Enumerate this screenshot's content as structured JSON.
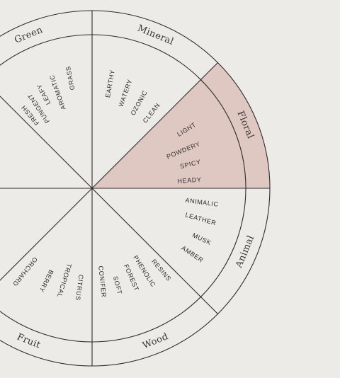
{
  "wheel": {
    "colors": {
      "background": "#ecebe7",
      "line": "#2f2b2b",
      "highlight": "#dfc8c1",
      "text": "#2e2a2a"
    },
    "highlighted_segment": "Floral",
    "segments": [
      {
        "name": "Green",
        "notes": [
          "FRESH",
          "PUNGENT",
          "LEAFY",
          "AROMATIC",
          "GRASS"
        ]
      },
      {
        "name": "Mineral",
        "notes": [
          "EARTHY",
          "WATERY",
          "OZONIC",
          "CLEAN"
        ]
      },
      {
        "name": "Floral",
        "notes": [
          "LIGHT",
          "POWDERY",
          "SPICY",
          "HEADY"
        ]
      },
      {
        "name": "Animal",
        "notes": [
          "ANIMALIC",
          "LEATHER",
          "MUSK",
          "AMBER"
        ]
      },
      {
        "name": "Wood",
        "notes": [
          "RESINS",
          "PHENOLIC",
          "FOREST",
          "SOFT",
          "CONIFER"
        ]
      },
      {
        "name": "Fruit",
        "notes": [
          "CITRUS",
          "TROPICAL",
          "BERRY",
          "ORCHARD"
        ]
      }
    ]
  }
}
